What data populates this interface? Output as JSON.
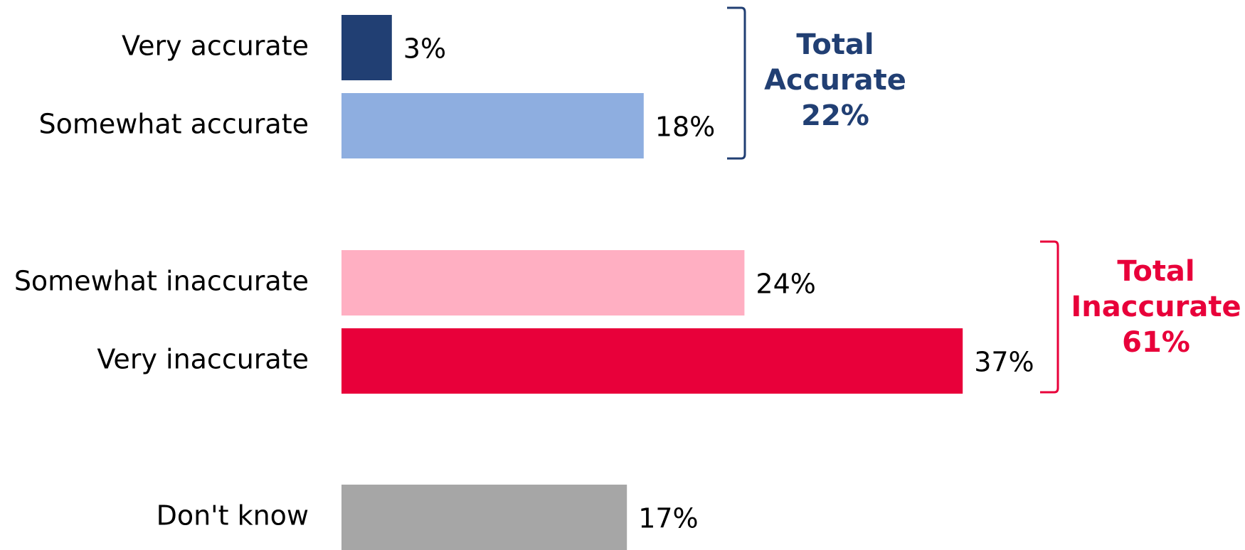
{
  "chart_data": {
    "type": "bar",
    "orientation": "horizontal",
    "categories": [
      "Very accurate",
      "Somewhat accurate",
      "Somewhat inaccurate",
      "Very inaccurate",
      "Don't know"
    ],
    "values": [
      3,
      18,
      24,
      37,
      17
    ],
    "value_labels": [
      "3%",
      "18%",
      "24%",
      "37%",
      "17%"
    ],
    "colors": [
      "#213f73",
      "#8eaee0",
      "#ffafc2",
      "#e8003a",
      "#a6a6a6"
    ],
    "annotations": [
      {
        "lines": [
          "Total",
          "Accurate",
          "22%"
        ],
        "color": "#213f73"
      },
      {
        "lines": [
          "Total",
          "Inaccurate",
          "61%"
        ],
        "color": "#e8003a"
      }
    ]
  }
}
